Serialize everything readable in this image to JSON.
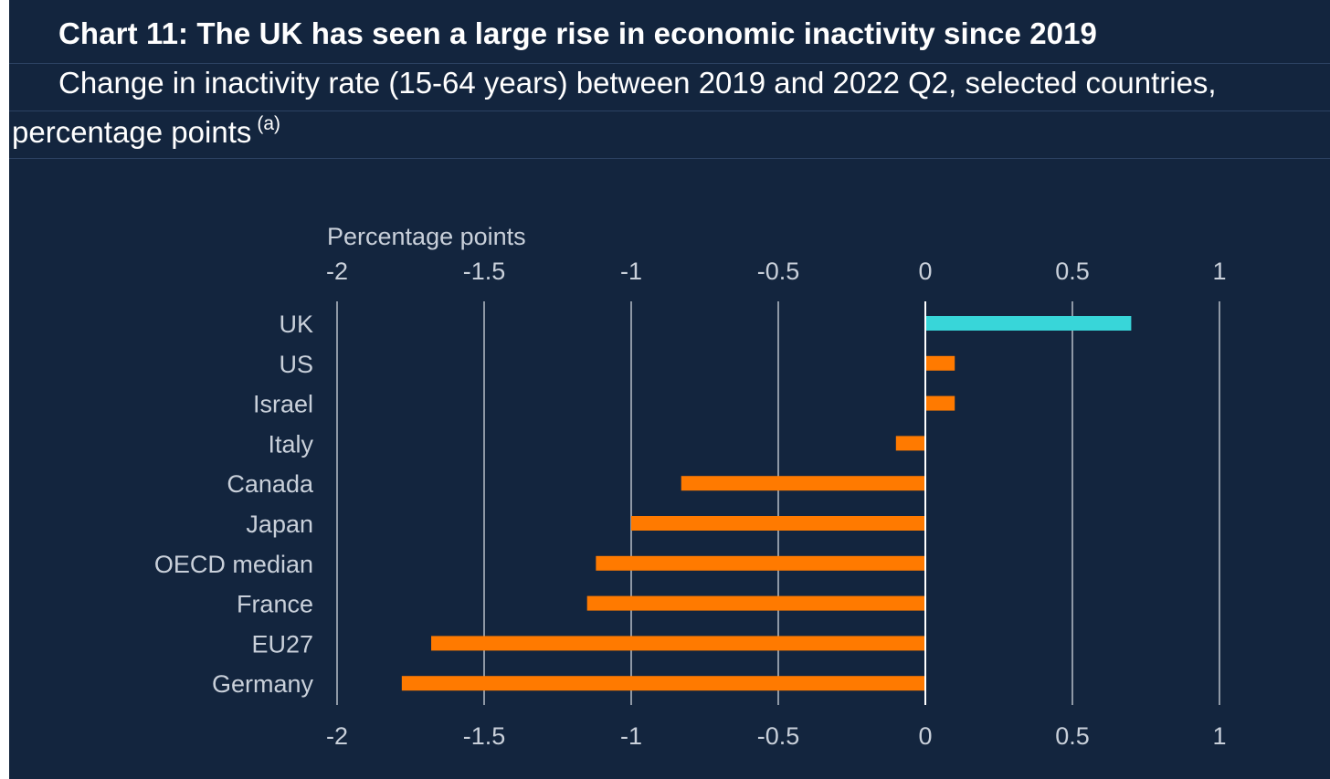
{
  "header": {
    "title": "Chart 11: The UK has seen a large rise in economic inactivity since 2019",
    "subtitle_line1": "Change in inactivity rate (15-64 years) between 2019 and 2022 Q2, selected countries,",
    "subtitle_line2": "percentage points",
    "footnote_marker": "(a)"
  },
  "chart_data": {
    "type": "bar",
    "orientation": "horizontal",
    "xlabel": "Percentage points",
    "xlim": [
      -2,
      1
    ],
    "xticks": [
      -2,
      -1.5,
      -1,
      -0.5,
      0,
      0.5,
      1
    ],
    "xtick_labels": [
      "-2",
      "-1.5",
      "-1",
      "-0.5",
      "0",
      "0.5",
      "1"
    ],
    "grid": true,
    "categories": [
      "UK",
      "US",
      "Israel",
      "Italy",
      "Canada",
      "Japan",
      "OECD median",
      "France",
      "EU27",
      "Germany"
    ],
    "values": [
      0.7,
      0.1,
      0.1,
      -0.1,
      -0.83,
      -1.0,
      -1.12,
      -1.15,
      -1.68,
      -1.78
    ],
    "highlight_category": "UK",
    "colors": {
      "highlight": "#38d6d9",
      "default": "#ff7a00",
      "gridline": "#dfe4ea",
      "zero_line": "#ffffff",
      "background": "#13253e"
    }
  }
}
